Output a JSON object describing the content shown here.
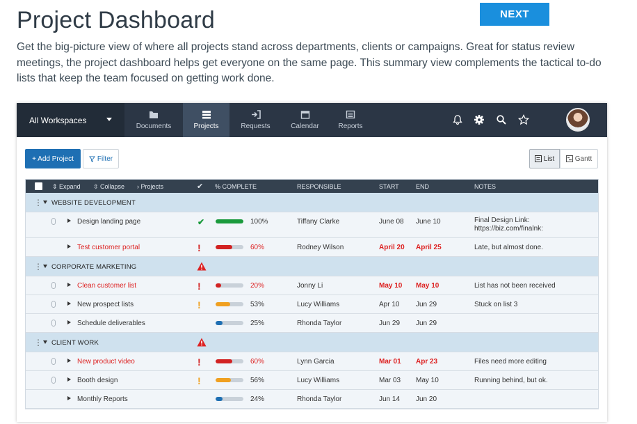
{
  "page": {
    "title": "Project Dashboard",
    "next_label": "NEXT",
    "intro": "Get the big-picture view of where all projects stand across departments, clients or campaigns. Great for status review meetings, the project dashboard helps get everyone on the same page. This summary view complements the tactical to-do lists that keep the team focused on getting work done."
  },
  "nav": {
    "workspace": "All Workspaces",
    "tabs": [
      {
        "label": "Documents",
        "icon": "folder-icon"
      },
      {
        "label": "Projects",
        "icon": "projects-icon",
        "active": true
      },
      {
        "label": "Requests",
        "icon": "requests-icon"
      },
      {
        "label": "Calendar",
        "icon": "calendar-icon"
      },
      {
        "label": "Reports",
        "icon": "reports-icon"
      }
    ],
    "icons": [
      "bell-icon",
      "gear-icon",
      "search-icon",
      "star-icon",
      "avatar"
    ]
  },
  "toolbar": {
    "add_project": "+ Add Project",
    "filter": "Filter",
    "list": "List",
    "gantt": "Gantt"
  },
  "table": {
    "header": {
      "expand": "Expand",
      "collapse": "Collapse",
      "projects": "Projects",
      "complete": "% COMPLETE",
      "responsible": "RESPONSIBLE",
      "start": "START",
      "end": "END",
      "notes": "NOTES"
    },
    "groups": [
      {
        "name": "WEBSITE DEVELOPMENT",
        "warning": false,
        "tasks": [
          {
            "name": "Design landing page",
            "status": "done",
            "percent": 100,
            "pct_label": "100%",
            "responsible": "Tiffany Clarke",
            "start": "June 08",
            "end": "June 10",
            "notes": "Final Design Link: https://biz.com/finalnk:",
            "late": false,
            "clip": true
          },
          {
            "name": "Test customer portal",
            "status": "critical",
            "percent": 60,
            "pct_label": "60%",
            "responsible": "Rodney Wilson",
            "start": "April 20",
            "end": "April 25",
            "notes": "Late, but almost done.",
            "late": true,
            "clip": false
          }
        ]
      },
      {
        "name": "CORPORATE MARKETING",
        "warning": true,
        "tasks": [
          {
            "name": "Clean customer list",
            "status": "critical",
            "percent": 20,
            "pct_label": "20%",
            "responsible": "Jonny Li",
            "start": "May 10",
            "end": "May 10",
            "notes": "List has not been received",
            "late": true,
            "clip": true
          },
          {
            "name": "New prospect lists",
            "status": "warning",
            "percent": 53,
            "pct_label": "53%",
            "responsible": "Lucy Williams",
            "start": "Apr 10",
            "end": "Jun 29",
            "notes": "Stuck on list 3",
            "late": false,
            "clip": true
          },
          {
            "name": "Schedule deliverables",
            "status": "none",
            "percent": 25,
            "pct_label": "25%",
            "responsible": "Rhonda Taylor",
            "start": "Jun 29",
            "end": "Jun 29",
            "notes": "",
            "late": false,
            "clip": true
          }
        ]
      },
      {
        "name": "CLIENT WORK",
        "warning": true,
        "tasks": [
          {
            "name": "New product video",
            "status": "critical",
            "percent": 60,
            "pct_label": "60%",
            "responsible": "Lynn Garcia",
            "start": "Mar 01",
            "end": "Apr 23",
            "notes": "Files need more editing",
            "late": true,
            "clip": true
          },
          {
            "name": "Booth design",
            "status": "warning",
            "percent": 56,
            "pct_label": "56%",
            "responsible": "Lucy Williams",
            "start": "Mar 03",
            "end": "May 10",
            "notes": "Running behind, but ok.",
            "late": false,
            "clip": true
          },
          {
            "name": "Monthly Reports",
            "status": "none",
            "percent": 24,
            "pct_label": "24%",
            "responsible": "Rhonda Taylor",
            "start": "Jun 14",
            "end": "Jun 20",
            "notes": "",
            "late": false,
            "clip": false
          }
        ]
      }
    ]
  },
  "colors": {
    "done": "#1a9a3c",
    "critical": "#d22222",
    "warning": "#f0a020",
    "normal": "#1e6fb3"
  }
}
